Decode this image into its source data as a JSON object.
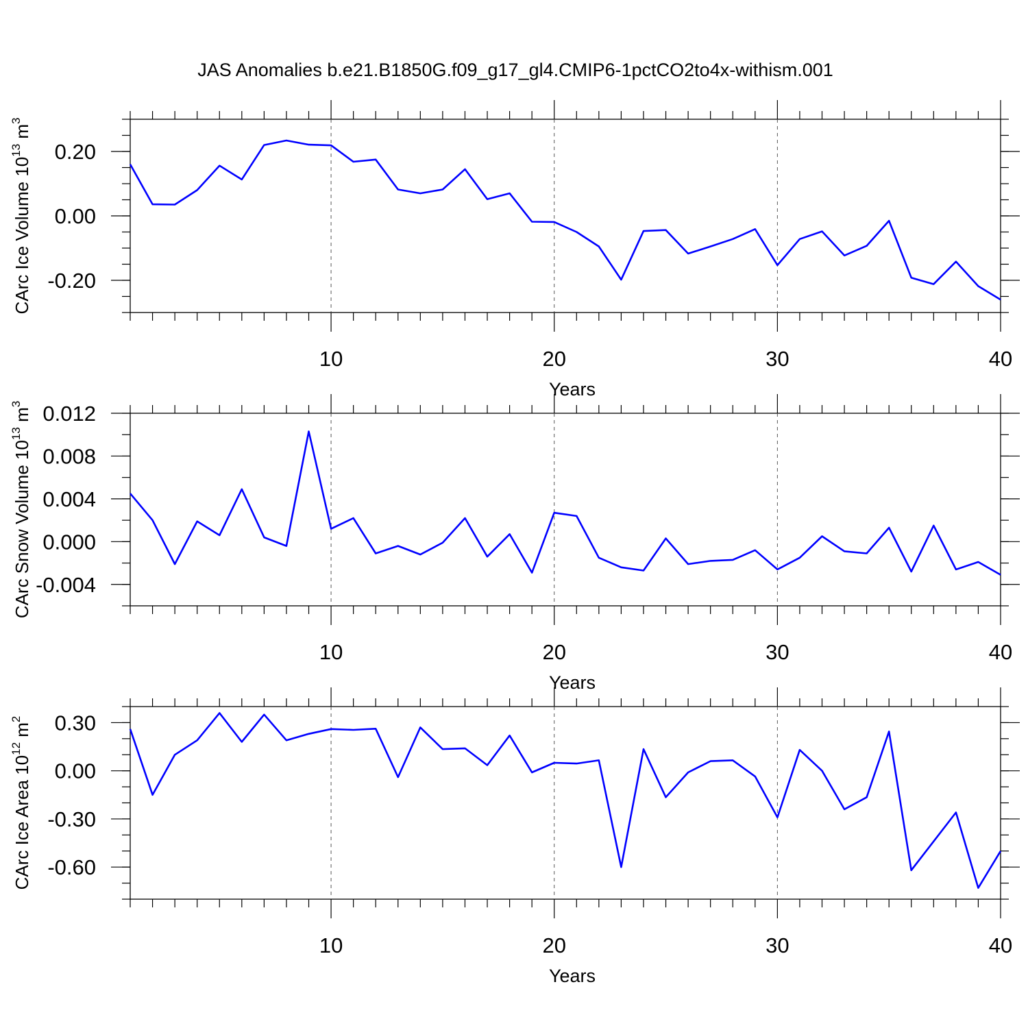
{
  "title": "JAS Anomalies b.e21.B1850G.f09_g17_gl4.CMIP6-1pctCO2to4x-withism.001",
  "colors": {
    "line": "#0000ff",
    "frame": "#000000",
    "grid": "#555555"
  },
  "chart_data": [
    {
      "type": "line",
      "ylabel": "CArc Ice Volume 10",
      "ylabel_exp": "13",
      "ylabel_unit": " m",
      "ylabel_unit_exp": "3",
      "xlabel": "Years",
      "xlim": [
        1,
        40
      ],
      "ylim": [
        -0.3,
        0.3
      ],
      "xticks": [
        10,
        20,
        30,
        40
      ],
      "yticks": [
        0.2,
        0.0,
        -0.2
      ],
      "ytick_labels": [
        "0.20",
        "0.00",
        "-0.20"
      ],
      "grid_x": [
        10,
        20,
        30
      ],
      "x": [
        1,
        2,
        3,
        4,
        5,
        6,
        7,
        8,
        9,
        10,
        11,
        12,
        13,
        14,
        15,
        16,
        17,
        18,
        19,
        20,
        21,
        22,
        23,
        24,
        25,
        26,
        27,
        28,
        29,
        30,
        31,
        32,
        33,
        34,
        35,
        36,
        37,
        38,
        39,
        40
      ],
      "series": [
        {
          "values": [
            0.16,
            0.036,
            0.035,
            0.08,
            0.156,
            0.113,
            0.22,
            0.234,
            0.221,
            0.219,
            0.168,
            0.175,
            0.082,
            0.07,
            0.082,
            0.145,
            0.052,
            0.07,
            -0.018,
            -0.019,
            -0.05,
            -0.095,
            -0.198,
            -0.047,
            -0.044,
            -0.117,
            -0.095,
            -0.072,
            -0.041,
            -0.153,
            -0.072,
            -0.048,
            -0.123,
            -0.093,
            -0.015,
            -0.192,
            -0.212,
            -0.142,
            -0.218,
            -0.26
          ]
        }
      ]
    },
    {
      "type": "line",
      "ylabel": "CArc Snow Volume 10",
      "ylabel_exp": "13",
      "ylabel_unit": " m",
      "ylabel_unit_exp": "3",
      "xlabel": "Years",
      "xlim": [
        1,
        40
      ],
      "ylim": [
        -0.006,
        0.012
      ],
      "xticks": [
        10,
        20,
        30,
        40
      ],
      "yticks": [
        0.012,
        0.008,
        0.004,
        0.0,
        -0.004
      ],
      "ytick_labels": [
        "0.012",
        "0.008",
        "0.004",
        "0.000",
        "-0.004"
      ],
      "grid_x": [
        10,
        20,
        30
      ],
      "x": [
        1,
        2,
        3,
        4,
        5,
        6,
        7,
        8,
        9,
        10,
        11,
        12,
        13,
        14,
        15,
        16,
        17,
        18,
        19,
        20,
        21,
        22,
        23,
        24,
        25,
        26,
        27,
        28,
        29,
        30,
        31,
        32,
        33,
        34,
        35,
        36,
        37,
        38,
        39,
        40
      ],
      "series": [
        {
          "values": [
            0.0045,
            0.002,
            -0.0021,
            0.0019,
            0.0006,
            0.0049,
            0.0004,
            -0.0004,
            0.0103,
            0.0012,
            0.0022,
            -0.0011,
            -0.0004,
            -0.0012,
            -0.0001,
            0.0022,
            -0.0014,
            0.0007,
            -0.0029,
            0.0027,
            0.0024,
            -0.0015,
            -0.0024,
            -0.0027,
            0.0003,
            -0.0021,
            -0.0018,
            -0.0017,
            -0.0008,
            -0.0026,
            -0.0015,
            0.0005,
            -0.0009,
            -0.0011,
            0.0013,
            -0.0028,
            0.0015,
            -0.0026,
            -0.0019,
            -0.0031
          ]
        }
      ]
    },
    {
      "type": "line",
      "ylabel": "CArc Ice Area 10",
      "ylabel_exp": "12",
      "ylabel_unit": " m",
      "ylabel_unit_exp": "2",
      "xlabel": "Years",
      "xlim": [
        1,
        40
      ],
      "ylim": [
        -0.8,
        0.4
      ],
      "xticks": [
        10,
        20,
        30,
        40
      ],
      "yticks": [
        0.3,
        0.0,
        -0.3,
        -0.6
      ],
      "ytick_labels": [
        "0.30",
        "0.00",
        "-0.30",
        "-0.60"
      ],
      "grid_x": [
        10,
        20,
        30
      ],
      "x": [
        1,
        2,
        3,
        4,
        5,
        6,
        7,
        8,
        9,
        10,
        11,
        12,
        13,
        14,
        15,
        16,
        17,
        18,
        19,
        20,
        21,
        22,
        23,
        24,
        25,
        26,
        27,
        28,
        29,
        30,
        31,
        32,
        33,
        34,
        35,
        36,
        37,
        38,
        39,
        40
      ],
      "series": [
        {
          "values": [
            0.26,
            -0.15,
            0.1,
            0.19,
            0.36,
            0.18,
            0.35,
            0.19,
            0.23,
            0.26,
            0.255,
            0.262,
            -0.04,
            0.27,
            0.135,
            0.14,
            0.035,
            0.22,
            -0.01,
            0.05,
            0.045,
            0.065,
            -0.6,
            0.135,
            -0.165,
            -0.01,
            0.06,
            0.065,
            -0.035,
            -0.29,
            0.13,
            0.0,
            -0.24,
            -0.165,
            0.245,
            -0.62,
            -0.44,
            -0.26,
            -0.73,
            -0.5
          ]
        }
      ]
    }
  ]
}
